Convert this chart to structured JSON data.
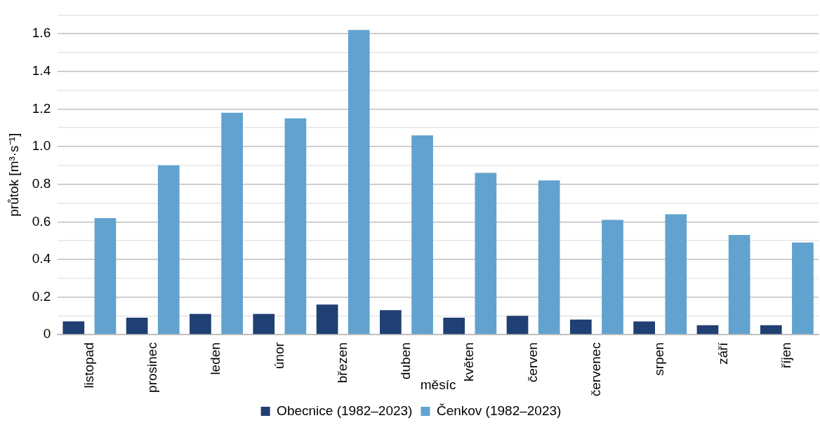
{
  "chart_data": {
    "type": "bar",
    "xlabel": "měsíc",
    "ylabel": "průtok [m³·s⁻¹]",
    "categories": [
      "listopad",
      "prosinec",
      "leden",
      "únor",
      "březen",
      "duben",
      "květen",
      "červen",
      "červenec",
      "srpen",
      "září",
      "říjen"
    ],
    "series": [
      {
        "name": "Obecnice (1982–2023)",
        "color": "#203f73",
        "values": [
          0.07,
          0.09,
          0.11,
          0.11,
          0.16,
          0.13,
          0.09,
          0.1,
          0.08,
          0.07,
          0.05,
          0.05
        ]
      },
      {
        "name": "Čenkov (1982–2023)",
        "color": "#62a2cf",
        "values": [
          0.62,
          0.9,
          1.18,
          1.15,
          1.62,
          1.06,
          0.86,
          0.82,
          0.61,
          0.64,
          0.53,
          0.49
        ]
      }
    ],
    "ylim": [
      0,
      1.7
    ],
    "yticks": [
      0,
      {
        "value": 0.1,
        "label": null
      },
      0.2,
      {
        "value": 0.3,
        "label": null
      },
      0.4,
      {
        "value": 0.5,
        "label": null
      },
      0.6,
      {
        "value": 0.7,
        "label": null
      },
      0.8,
      {
        "value": 0.9,
        "label": null
      },
      {
        "value": 1.0,
        "label": "1.0"
      },
      {
        "value": 1.1,
        "label": null
      },
      1.2,
      {
        "value": 1.3,
        "label": null
      },
      1.4,
      {
        "value": 1.5,
        "label": null
      },
      1.6,
      {
        "value": 1.7,
        "label": null
      }
    ],
    "grid": "y",
    "legend": "bottom"
  }
}
